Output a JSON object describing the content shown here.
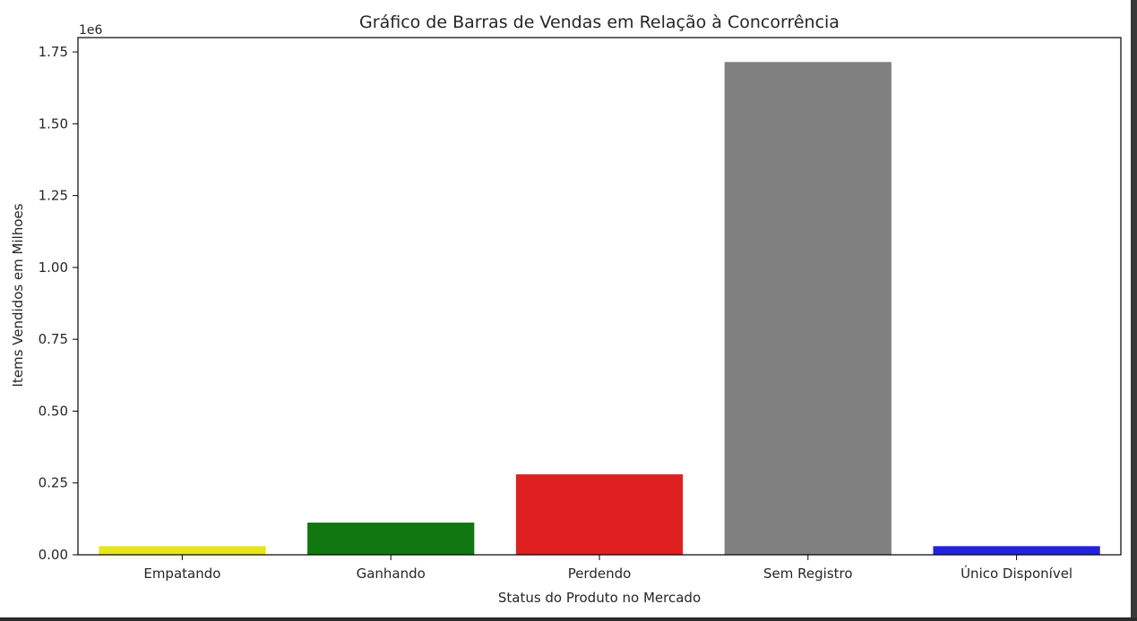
{
  "chart_data": {
    "type": "bar",
    "title": "Gráfico de Barras de Vendas em Relação à Concorrência",
    "xlabel": "Status do Produto no Mercado",
    "ylabel": "Items Vendidos em Milhoes",
    "y_offset_label": "1e6",
    "categories": [
      "Empatando",
      "Ganhando",
      "Perdendo",
      "Sem Registro",
      "Único Disponível"
    ],
    "values": [
      30000,
      112000,
      280000,
      1715000,
      30000
    ],
    "colors": [
      "#e6e619",
      "#117711",
      "#e02020",
      "#808080",
      "#2222e0"
    ],
    "ylim": [
      0,
      1800000
    ],
    "yticks": [
      0,
      250000,
      500000,
      750000,
      1000000,
      1250000,
      1500000,
      1750000
    ],
    "ytick_labels": [
      "0.00",
      "0.25",
      "0.50",
      "0.75",
      "1.00",
      "1.25",
      "1.50",
      "1.75"
    ],
    "grid": false,
    "legend": "none"
  }
}
